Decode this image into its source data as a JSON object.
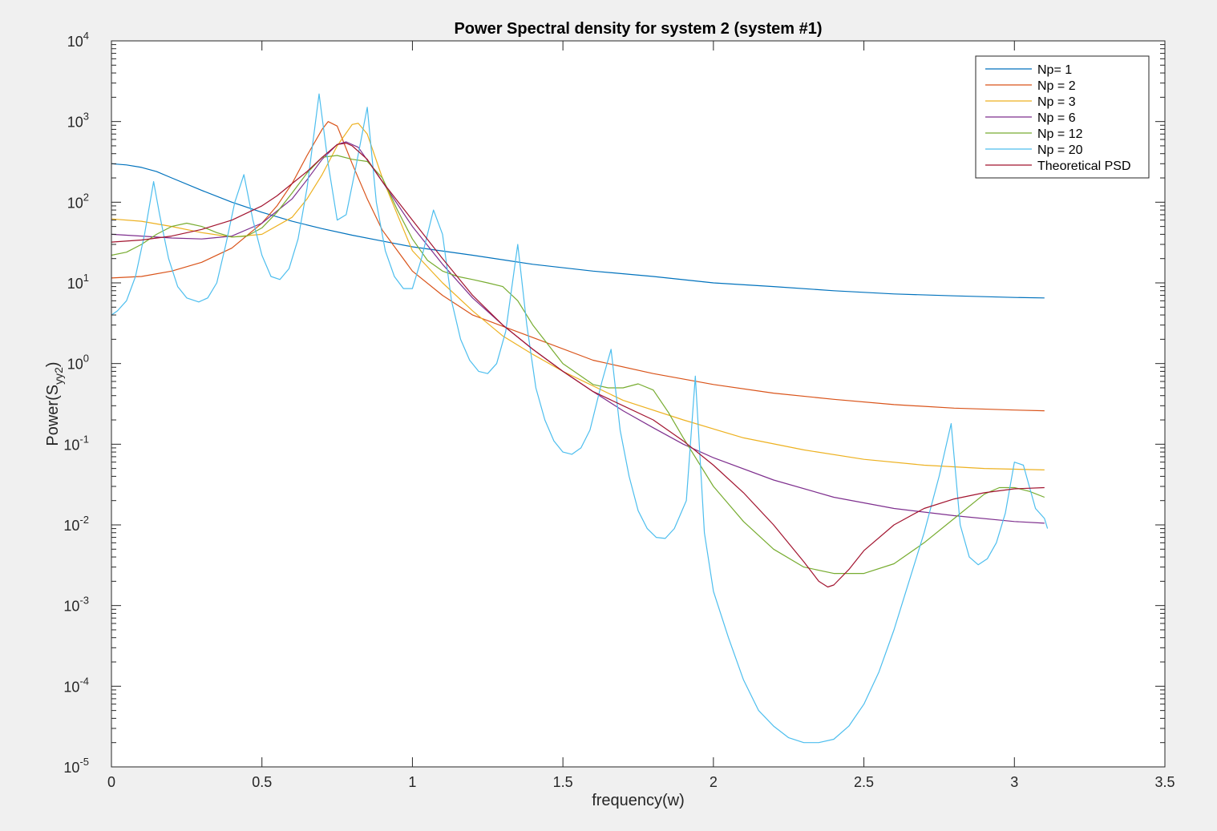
{
  "chart_data": {
    "type": "line",
    "title": "Power Spectral density for system 2 (system #1)",
    "xlabel": "frequency(w)",
    "ylabel": {
      "base": "Power(S",
      "subscript": "yy2",
      "suffix": ")"
    },
    "xlim": [
      0,
      3.5
    ],
    "ylim": [
      1e-05,
      10000
    ],
    "yscale": "log",
    "xticks": [
      "0",
      "0.5",
      "1",
      "1.5",
      "2",
      "2.5",
      "3",
      "3.5"
    ],
    "yticks": [
      {
        "base": "10",
        "exp": "4"
      },
      {
        "base": "10",
        "exp": "3"
      },
      {
        "base": "10",
        "exp": "2"
      },
      {
        "base": "10",
        "exp": "1"
      },
      {
        "base": "10",
        "exp": "0"
      },
      {
        "base": "10",
        "exp": "-1"
      },
      {
        "base": "10",
        "exp": "-2"
      },
      {
        "base": "10",
        "exp": "-3"
      },
      {
        "base": "10",
        "exp": "-4"
      },
      {
        "base": "10",
        "exp": "-5"
      }
    ],
    "grid": false,
    "legend_position": "top-right",
    "series": [
      {
        "name": "Np= 1",
        "color": "#0072bd",
        "x": [
          0,
          0.05,
          0.1,
          0.15,
          0.2,
          0.3,
          0.4,
          0.5,
          0.6,
          0.7,
          0.8,
          0.9,
          1.0,
          1.2,
          1.4,
          1.6,
          1.8,
          2.0,
          2.2,
          2.4,
          2.6,
          2.8,
          3.0,
          3.1
        ],
        "y": [
          300,
          290,
          270,
          240,
          200,
          140,
          100,
          75,
          58,
          47,
          39,
          33,
          28,
          22,
          17,
          14,
          12,
          10,
          9,
          8,
          7.3,
          6.9,
          6.6,
          6.5
        ]
      },
      {
        "name": "Np = 2",
        "color": "#d95319",
        "x": [
          0,
          0.1,
          0.2,
          0.3,
          0.4,
          0.5,
          0.55,
          0.6,
          0.65,
          0.7,
          0.72,
          0.75,
          0.8,
          0.85,
          0.9,
          1.0,
          1.1,
          1.2,
          1.4,
          1.6,
          1.8,
          2.0,
          2.2,
          2.4,
          2.6,
          2.8,
          3.0,
          3.1
        ],
        "y": [
          11.5,
          12,
          14,
          18,
          27,
          55,
          90,
          170,
          380,
          800,
          1000,
          880,
          300,
          110,
          45,
          14,
          7,
          4,
          2.1,
          1.1,
          0.75,
          0.55,
          0.43,
          0.36,
          0.31,
          0.28,
          0.265,
          0.26
        ]
      },
      {
        "name": "Np = 3",
        "color": "#edb120",
        "x": [
          0,
          0.1,
          0.2,
          0.3,
          0.4,
          0.5,
          0.6,
          0.65,
          0.7,
          0.75,
          0.8,
          0.82,
          0.85,
          0.9,
          0.95,
          1.0,
          1.1,
          1.2,
          1.3,
          1.4,
          1.5,
          1.7,
          1.9,
          2.1,
          2.3,
          2.5,
          2.7,
          2.9,
          3.1
        ],
        "y": [
          62,
          58,
          50,
          42,
          37,
          40,
          65,
          110,
          220,
          500,
          920,
          950,
          700,
          200,
          70,
          25,
          10,
          4.5,
          2.2,
          1.3,
          0.8,
          0.35,
          0.2,
          0.12,
          0.085,
          0.065,
          0.055,
          0.05,
          0.048
        ]
      },
      {
        "name": "Np = 6",
        "color": "#7e2f8e",
        "x": [
          0,
          0.1,
          0.2,
          0.3,
          0.4,
          0.5,
          0.6,
          0.65,
          0.7,
          0.75,
          0.78,
          0.82,
          0.9,
          1.0,
          1.1,
          1.2,
          1.3,
          1.4,
          1.5,
          1.6,
          1.7,
          1.8,
          1.9,
          2.0,
          2.2,
          2.4,
          2.6,
          2.8,
          3.0,
          3.1
        ],
        "y": [
          40,
          38,
          36,
          35,
          38,
          55,
          110,
          190,
          340,
          520,
          560,
          480,
          180,
          50,
          17,
          6.5,
          3,
          1.5,
          0.8,
          0.45,
          0.26,
          0.16,
          0.1,
          0.068,
          0.036,
          0.022,
          0.016,
          0.013,
          0.011,
          0.0105
        ]
      },
      {
        "name": "Np = 12",
        "color": "#77ac30",
        "x": [
          0,
          0.05,
          0.1,
          0.15,
          0.2,
          0.25,
          0.3,
          0.35,
          0.4,
          0.45,
          0.5,
          0.55,
          0.6,
          0.65,
          0.7,
          0.75,
          0.8,
          0.85,
          0.9,
          0.95,
          1.0,
          1.05,
          1.1,
          1.15,
          1.2,
          1.25,
          1.3,
          1.35,
          1.4,
          1.5,
          1.6,
          1.65,
          1.7,
          1.75,
          1.8,
          1.85,
          1.9,
          2.0,
          2.1,
          2.2,
          2.3,
          2.4,
          2.5,
          2.6,
          2.7,
          2.8,
          2.9,
          2.95,
          3.0,
          3.05,
          3.1
        ],
        "y": [
          22,
          24,
          30,
          40,
          50,
          55,
          50,
          42,
          37,
          38,
          48,
          75,
          130,
          230,
          360,
          380,
          340,
          320,
          200,
          80,
          35,
          19,
          14,
          12,
          11,
          10,
          9,
          6,
          3,
          1,
          0.55,
          0.5,
          0.5,
          0.56,
          0.47,
          0.25,
          0.12,
          0.03,
          0.011,
          0.005,
          0.003,
          0.0025,
          0.0025,
          0.0033,
          0.006,
          0.012,
          0.024,
          0.029,
          0.029,
          0.026,
          0.022
        ]
      },
      {
        "name": "Np = 20",
        "color": "#4dbeee",
        "x": [
          0,
          0.02,
          0.05,
          0.08,
          0.11,
          0.14,
          0.16,
          0.19,
          0.22,
          0.25,
          0.29,
          0.32,
          0.35,
          0.38,
          0.41,
          0.44,
          0.47,
          0.5,
          0.53,
          0.56,
          0.59,
          0.62,
          0.65,
          0.69,
          0.72,
          0.75,
          0.78,
          0.81,
          0.85,
          0.88,
          0.91,
          0.94,
          0.97,
          1.0,
          1.03,
          1.07,
          1.1,
          1.13,
          1.16,
          1.19,
          1.22,
          1.25,
          1.28,
          1.31,
          1.35,
          1.38,
          1.41,
          1.44,
          1.47,
          1.5,
          1.53,
          1.56,
          1.59,
          1.63,
          1.66,
          1.69,
          1.72,
          1.75,
          1.78,
          1.81,
          1.84,
          1.87,
          1.91,
          1.94,
          1.97,
          2.0,
          2.05,
          2.1,
          2.15,
          2.2,
          2.25,
          2.3,
          2.35,
          2.4,
          2.45,
          2.5,
          2.55,
          2.6,
          2.65,
          2.7,
          2.75,
          2.79,
          2.82,
          2.85,
          2.88,
          2.91,
          2.94,
          2.97,
          3.0,
          3.03,
          3.07,
          3.1,
          3.11
        ],
        "y": [
          4,
          4.5,
          6,
          12,
          40,
          180,
          70,
          20,
          9,
          6.5,
          5.8,
          6.5,
          10,
          30,
          100,
          220,
          60,
          22,
          12,
          11,
          15,
          35,
          150,
          2200,
          300,
          60,
          70,
          250,
          1500,
          100,
          25,
          12,
          8.5,
          8.5,
          20,
          80,
          40,
          6,
          2,
          1.1,
          0.8,
          0.75,
          1,
          2.5,
          30,
          3,
          0.5,
          0.2,
          0.11,
          0.08,
          0.075,
          0.09,
          0.15,
          0.6,
          1.5,
          0.15,
          0.04,
          0.015,
          0.009,
          0.007,
          0.0068,
          0.009,
          0.02,
          0.7,
          0.008,
          0.0015,
          0.0004,
          0.00012,
          5e-05,
          3.2e-05,
          2.3e-05,
          2e-05,
          2e-05,
          2.2e-05,
          3.2e-05,
          6e-05,
          0.00015,
          0.0005,
          0.002,
          0.008,
          0.04,
          0.18,
          0.01,
          0.004,
          0.0032,
          0.0038,
          0.006,
          0.014,
          0.06,
          0.055,
          0.016,
          0.012,
          0.009
        ]
      },
      {
        "name": "Theoretical PSD",
        "color": "#a2142f",
        "x": [
          0,
          0.1,
          0.2,
          0.3,
          0.4,
          0.5,
          0.55,
          0.6,
          0.65,
          0.7,
          0.75,
          0.78,
          0.8,
          0.85,
          0.9,
          1.0,
          1.1,
          1.2,
          1.3,
          1.4,
          1.5,
          1.6,
          1.7,
          1.8,
          1.9,
          2.0,
          2.1,
          2.2,
          2.3,
          2.35,
          2.38,
          2.4,
          2.45,
          2.5,
          2.6,
          2.7,
          2.8,
          2.9,
          3.0,
          3.1
        ],
        "y": [
          32,
          34,
          38,
          46,
          60,
          90,
          120,
          170,
          240,
          360,
          520,
          540,
          500,
          340,
          180,
          60,
          20,
          7,
          3,
          1.5,
          0.8,
          0.45,
          0.3,
          0.2,
          0.11,
          0.055,
          0.025,
          0.01,
          0.0035,
          0.002,
          0.0017,
          0.0018,
          0.0028,
          0.0048,
          0.01,
          0.016,
          0.021,
          0.025,
          0.028,
          0.029
        ]
      }
    ]
  }
}
